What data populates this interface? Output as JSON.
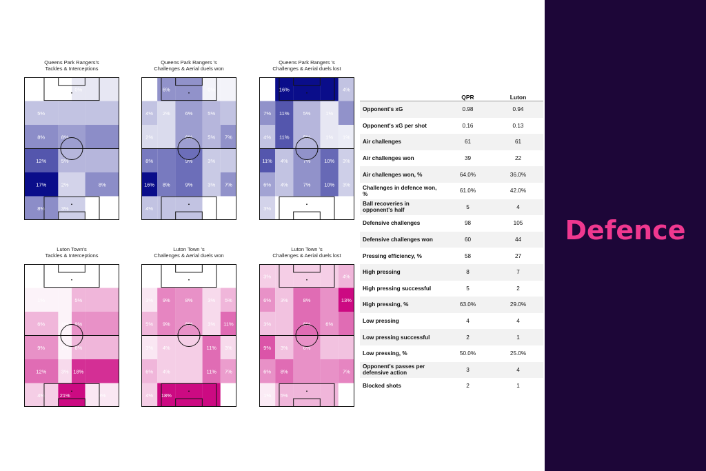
{
  "page": {
    "title": "Defence"
  },
  "colors": {
    "qpr": "#0a0d8a",
    "luton": "#cc0a82",
    "panel": "#1d0638",
    "accent": "#f0388f"
  },
  "chart_data": [
    {
      "type": "heatmap",
      "team": "qpr",
      "title": "Queens Park Rangers's\nTackles & Interceptions",
      "rows": [
        [
          {
            "l": "0%",
            "v": 0.0
          },
          {
            "l": "0%",
            "v": 0.0
          },
          {
            "l": "0%",
            "v": 0.1
          },
          {
            "l": "0%",
            "v": 0.1
          }
        ],
        [
          {
            "l": "5%",
            "v": 0.25
          },
          {
            "l": "5%",
            "v": 0.25
          },
          {
            "l": "5%",
            "v": 0.25
          },
          {
            "l": "5%",
            "v": 0.25
          }
        ],
        [
          {
            "l": "8%",
            "v": 0.47
          },
          {
            "l": "8%",
            "v": 0.4
          },
          {
            "l": "8%",
            "v": 0.4
          },
          {
            "l": "8%",
            "v": 0.47
          }
        ],
        [
          {
            "l": "12%",
            "v": 0.7
          },
          {
            "l": "5%",
            "v": 0.3
          },
          {
            "l": "5%",
            "v": 0.3
          },
          {
            "l": "5%",
            "v": 0.3
          }
        ],
        [
          {
            "l": "17%",
            "v": 1.0
          },
          {
            "l": "2%",
            "v": 0.18
          },
          {
            "l": "2%",
            "v": 0.18
          },
          {
            "l": "8%",
            "v": 0.47
          }
        ],
        [
          {
            "l": "8%",
            "v": 0.47
          },
          {
            "l": "3%",
            "v": 0.2
          },
          {
            "l": "3%",
            "v": 0.2
          },
          {
            "l": "0%",
            "v": 0.0
          }
        ]
      ]
    },
    {
      "type": "heatmap",
      "team": "qpr",
      "title": "Queens Park Rangers 's\nChallenges & Aerial duels won",
      "cols": 5,
      "rows": [
        [
          {
            "l": "0%",
            "v": 0.0
          },
          {
            "l": "6%",
            "v": 0.45
          },
          {
            "l": "6%",
            "v": 0.45
          },
          {
            "l": "0%",
            "v": 0.05
          },
          {
            "l": "0%",
            "v": 0.05
          }
        ],
        [
          {
            "l": "4%",
            "v": 0.25
          },
          {
            "l": "2%",
            "v": 0.15
          },
          {
            "l": "6%",
            "v": 0.4
          },
          {
            "l": "5%",
            "v": 0.3
          },
          {
            "l": "4%",
            "v": 0.25
          }
        ],
        [
          {
            "l": "2%",
            "v": 0.15
          },
          {
            "l": "2%",
            "v": 0.15
          },
          {
            "l": "6%",
            "v": 0.4
          },
          {
            "l": "5%",
            "v": 0.3
          },
          {
            "l": "7%",
            "v": 0.45
          }
        ],
        [
          {
            "l": "8%",
            "v": 0.55
          },
          {
            "l": "8%",
            "v": 0.55
          },
          {
            "l": "9%",
            "v": 0.6
          },
          {
            "l": "3%",
            "v": 0.22
          },
          {
            "l": "3%",
            "v": 0.22
          }
        ],
        [
          {
            "l": "16%",
            "v": 1.0
          },
          {
            "l": "8%",
            "v": 0.55
          },
          {
            "l": "9%",
            "v": 0.6
          },
          {
            "l": "3%",
            "v": 0.22
          },
          {
            "l": "7%",
            "v": 0.45
          }
        ],
        [
          {
            "l": "4%",
            "v": 0.25
          },
          {
            "l": "4%",
            "v": 0.25
          },
          {
            "l": "4%",
            "v": 0.25
          },
          {
            "l": "0%",
            "v": 0.0
          },
          {
            "l": "0%",
            "v": 0.0
          }
        ]
      ]
    },
    {
      "type": "heatmap",
      "team": "qpr",
      "title": "Queens Park Rangers 's\nChallenges & Aerial duels lost",
      "cols": 5,
      "rows": [
        [
          {
            "l": "0%",
            "v": 0.0
          },
          {
            "l": "16%",
            "v": 1.0
          },
          {
            "l": "16%",
            "v": 1.0
          },
          {
            "l": "16%",
            "v": 1.0
          },
          {
            "l": "4%",
            "v": 0.25
          }
        ],
        [
          {
            "l": "7%",
            "v": 0.45
          },
          {
            "l": "11%",
            "v": 0.7
          },
          {
            "l": "5%",
            "v": 0.3
          },
          {
            "l": "1%",
            "v": 0.1
          },
          {
            "l": "7%",
            "v": 0.45
          }
        ],
        [
          {
            "l": "4%",
            "v": 0.25
          },
          {
            "l": "11%",
            "v": 0.7
          },
          {
            "l": "5%",
            "v": 0.3
          },
          {
            "l": "1%",
            "v": 0.1
          },
          {
            "l": "1%",
            "v": 0.08
          }
        ],
        [
          {
            "l": "11%",
            "v": 0.7
          },
          {
            "l": "4%",
            "v": 0.25
          },
          {
            "l": "7%",
            "v": 0.45
          },
          {
            "l": "10%",
            "v": 0.62
          },
          {
            "l": "3%",
            "v": 0.2
          }
        ],
        [
          {
            "l": "6%",
            "v": 0.38
          },
          {
            "l": "4%",
            "v": 0.25
          },
          {
            "l": "7%",
            "v": 0.45
          },
          {
            "l": "10%",
            "v": 0.62
          },
          {
            "l": "3%",
            "v": 0.2
          }
        ],
        [
          {
            "l": "3%",
            "v": 0.18
          },
          {
            "l": "0%",
            "v": 0.0
          },
          {
            "l": "0%",
            "v": 0.0
          },
          {
            "l": "0%",
            "v": 0.0
          },
          {
            "l": "0%",
            "v": 0.0
          }
        ]
      ]
    },
    {
      "type": "heatmap",
      "team": "luton",
      "title": "Luton Town's\nTackles & Interceptions",
      "rows": [
        [
          {
            "l": "0%",
            "v": 0.0
          },
          {
            "l": "0%",
            "v": 0.0
          },
          {
            "l": "0%",
            "v": 0.0
          },
          {
            "l": "0%",
            "v": 0.0
          }
        ],
        [
          {
            "l": "1%",
            "v": 0.05
          },
          {
            "l": "1%",
            "v": 0.05
          },
          {
            "l": "5%",
            "v": 0.3
          },
          {
            "l": "5%",
            "v": 0.3
          }
        ],
        [
          {
            "l": "6%",
            "v": 0.3
          },
          {
            "l": "1%",
            "v": 0.05
          },
          {
            "l": "9%",
            "v": 0.45
          },
          {
            "l": "9%",
            "v": 0.45
          }
        ],
        [
          {
            "l": "9%",
            "v": 0.45
          },
          {
            "l": "1%",
            "v": 0.05
          },
          {
            "l": "6%",
            "v": 0.3
          },
          {
            "l": "6%",
            "v": 0.3
          }
        ],
        [
          {
            "l": "12%",
            "v": 0.6
          },
          {
            "l": "3%",
            "v": 0.15
          },
          {
            "l": "18%",
            "v": 0.85
          },
          {
            "l": "18%",
            "v": 0.85
          }
        ],
        [
          {
            "l": "4%",
            "v": 0.2
          },
          {
            "l": "21%",
            "v": 1.0
          },
          {
            "l": "21%",
            "v": 1.0
          },
          {
            "l": "3%",
            "v": 0.1
          }
        ]
      ]
    },
    {
      "type": "heatmap",
      "team": "luton",
      "title": "Luton Town 's\nChallenges & Aerial duels won",
      "cols": 5,
      "rows": [
        [
          {
            "l": "0%",
            "v": 0.0
          },
          {
            "l": "0%",
            "v": 0.0
          },
          {
            "l": "0%",
            "v": 0.0
          },
          {
            "l": "0%",
            "v": 0.0
          },
          {
            "l": "0%",
            "v": 0.0
          }
        ],
        [
          {
            "l": "3%",
            "v": 0.1
          },
          {
            "l": "9%",
            "v": 0.5
          },
          {
            "l": "8%",
            "v": 0.45
          },
          {
            "l": "3%",
            "v": 0.15
          },
          {
            "l": "5%",
            "v": 0.3
          }
        ],
        [
          {
            "l": "5%",
            "v": 0.3
          },
          {
            "l": "9%",
            "v": 0.5
          },
          {
            "l": "8%",
            "v": 0.45
          },
          {
            "l": "3%",
            "v": 0.15
          },
          {
            "l": "11%",
            "v": 0.6
          }
        ],
        [
          {
            "l": "3%",
            "v": 0.1
          },
          {
            "l": "4%",
            "v": 0.2
          },
          {
            "l": "4%",
            "v": 0.2
          },
          {
            "l": "11%",
            "v": 0.6
          },
          {
            "l": "3%",
            "v": 0.15
          }
        ],
        [
          {
            "l": "6%",
            "v": 0.3
          },
          {
            "l": "4%",
            "v": 0.2
          },
          {
            "l": "4%",
            "v": 0.2
          },
          {
            "l": "11%",
            "v": 0.6
          },
          {
            "l": "7%",
            "v": 0.4
          }
        ],
        [
          {
            "l": "4%",
            "v": 0.2
          },
          {
            "l": "18%",
            "v": 1.0
          },
          {
            "l": "18%",
            "v": 1.0
          },
          {
            "l": "18%",
            "v": 1.0
          },
          {
            "l": "0%",
            "v": 0.0
          }
        ]
      ]
    },
    {
      "type": "heatmap",
      "team": "luton",
      "title": "Luton Town 's\nChallenges & Aerial duels lost",
      "cols": 5,
      "rows": [
        [
          {
            "l": "3%",
            "v": 0.2
          },
          {
            "l": "3%",
            "v": 0.2
          },
          {
            "l": "3%",
            "v": 0.2
          },
          {
            "l": "3%",
            "v": 0.2
          },
          {
            "l": "4%",
            "v": 0.3
          }
        ],
        [
          {
            "l": "6%",
            "v": 0.45
          },
          {
            "l": "3%",
            "v": 0.25
          },
          {
            "l": "8%",
            "v": 0.6
          },
          {
            "l": "6%",
            "v": 0.45
          },
          {
            "l": "13%",
            "v": 1.0
          }
        ],
        [
          {
            "l": "3%",
            "v": 0.25
          },
          {
            "l": "3%",
            "v": 0.25
          },
          {
            "l": "8%",
            "v": 0.6
          },
          {
            "l": "6%",
            "v": 0.45
          },
          {
            "l": "8%",
            "v": 0.6
          }
        ],
        [
          {
            "l": "9%",
            "v": 0.7
          },
          {
            "l": "3%",
            "v": 0.25
          },
          {
            "l": "6%",
            "v": 0.45
          },
          {
            "l": "3%",
            "v": 0.25
          },
          {
            "l": "3%",
            "v": 0.25
          }
        ],
        [
          {
            "l": "6%",
            "v": 0.45
          },
          {
            "l": "8%",
            "v": 0.6
          },
          {
            "l": "6%",
            "v": 0.45
          },
          {
            "l": "6%",
            "v": 0.45
          },
          {
            "l": "7%",
            "v": 0.5
          }
        ],
        [
          {
            "l": "1%",
            "v": 0.08
          },
          {
            "l": "5%",
            "v": 0.3
          },
          {
            "l": "5%",
            "v": 0.3
          },
          {
            "l": "5%",
            "v": 0.3
          },
          {
            "l": "0%",
            "v": 0.0
          }
        ]
      ]
    }
  ],
  "table": {
    "columns": [
      "",
      "QPR",
      "Luton"
    ],
    "rows": [
      [
        "Opponent's xG",
        "0.98",
        "0.94"
      ],
      [
        "Opponent's xG per shot",
        "0.16",
        "0.13"
      ],
      [
        "Air challenges",
        "61",
        "61"
      ],
      [
        "Air challenges won",
        "39",
        "22"
      ],
      [
        "Air challenges won, %",
        "64.0%",
        "36.0%"
      ],
      [
        "Challenges in defence won, %",
        "61.0%",
        "42.0%"
      ],
      [
        "Ball recoveries in opponent's half",
        "5",
        "4"
      ],
      [
        "Defensive challenges",
        "98",
        "105"
      ],
      [
        "Defensive challenges won",
        "60",
        "44"
      ],
      [
        "Pressing efficiency, %",
        "58",
        "27"
      ],
      [
        "High pressing",
        "8",
        "7"
      ],
      [
        "High pressing successful",
        "5",
        "2"
      ],
      [
        "High pressing, %",
        "63.0%",
        "29.0%"
      ],
      [
        "Low pressing",
        "4",
        "4"
      ],
      [
        "Low pressing successful",
        "2",
        "1"
      ],
      [
        "Low pressing, %",
        "50.0%",
        "25.0%"
      ],
      [
        "Opponent's passes per defensive action",
        "3",
        "4"
      ],
      [
        "Blocked shots",
        "2",
        "1"
      ]
    ]
  }
}
